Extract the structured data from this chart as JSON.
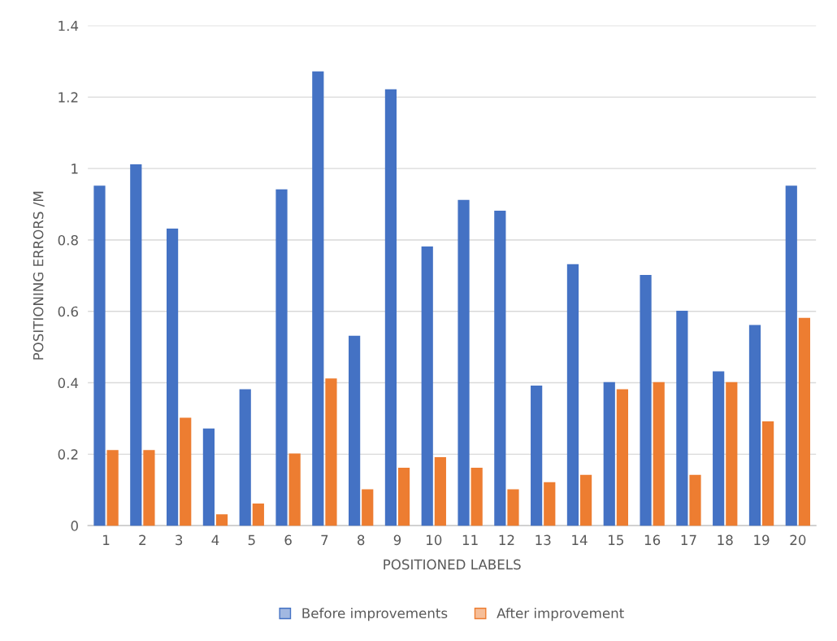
{
  "chart_data": {
    "type": "bar",
    "xlabel": "POSITIONED LABELS",
    "ylabel": "POSITIONING ERRORS /M",
    "categories": [
      "1",
      "2",
      "3",
      "4",
      "5",
      "6",
      "7",
      "8",
      "9",
      "10",
      "11",
      "12",
      "13",
      "14",
      "15",
      "16",
      "17",
      "18",
      "19",
      "20"
    ],
    "series": [
      {
        "name": "Before improvements",
        "color": "#4472c4",
        "values": [
          0.95,
          1.01,
          0.83,
          0.27,
          0.38,
          0.94,
          1.27,
          0.53,
          1.22,
          0.78,
          0.91,
          0.88,
          0.39,
          0.73,
          0.4,
          0.7,
          0.6,
          0.43,
          0.56,
          0.95
        ]
      },
      {
        "name": "After improvement",
        "color": "#ed7d31",
        "values": [
          0.21,
          0.21,
          0.3,
          0.03,
          0.06,
          0.2,
          0.41,
          0.1,
          0.16,
          0.19,
          0.16,
          0.1,
          0.12,
          0.14,
          0.38,
          0.4,
          0.14,
          0.4,
          0.29,
          0.58
        ]
      }
    ],
    "ylim": [
      0,
      1.4
    ],
    "yticks": [
      0,
      0.2,
      0.4,
      0.6,
      0.8,
      1,
      1.2,
      1.4
    ],
    "grid": "y",
    "legend": "bottom"
  }
}
